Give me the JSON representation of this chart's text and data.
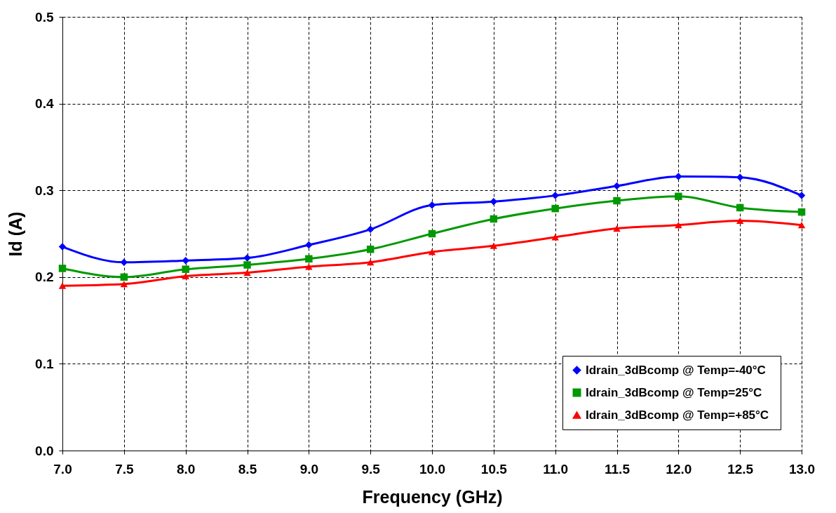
{
  "chart_data": {
    "type": "line",
    "xlabel": "Frequency (GHz)",
    "ylabel": "Id (A)",
    "x": [
      7.0,
      7.5,
      8.0,
      8.5,
      9.0,
      9.5,
      10.0,
      10.5,
      11.0,
      11.5,
      12.0,
      12.5,
      13.0
    ],
    "series": [
      {
        "name": "Idrain_3dBcomp  @ Temp=-40°C",
        "color": "#0000ff",
        "marker": "diamond",
        "values": [
          0.235,
          0.217,
          0.219,
          0.222,
          0.237,
          0.255,
          0.283,
          0.287,
          0.294,
          0.305,
          0.316,
          0.315,
          0.294
        ]
      },
      {
        "name": "Idrain_3dBcomp  @ Temp=25°C",
        "color": "#009900",
        "marker": "square",
        "values": [
          0.21,
          0.2,
          0.209,
          0.214,
          0.221,
          0.232,
          0.25,
          0.267,
          0.279,
          0.288,
          0.293,
          0.28,
          0.275
        ]
      },
      {
        "name": "Idrain_3dBcomp  @ Temp=+85°C",
        "color": "#ff0000",
        "marker": "triangle",
        "values": [
          0.19,
          0.192,
          0.201,
          0.205,
          0.212,
          0.217,
          0.229,
          0.236,
          0.246,
          0.256,
          0.26,
          0.265,
          0.26
        ]
      }
    ],
    "xlim": [
      7.0,
      13.0
    ],
    "xticks": [
      {
        "value": 7,
        "label": "7.0"
      },
      {
        "value": 7.5,
        "label": "7.5"
      },
      {
        "value": 8,
        "label": "8.0"
      },
      {
        "value": 8.5,
        "label": "8.5"
      },
      {
        "value": 9,
        "label": "9.0"
      },
      {
        "value": 9.5,
        "label": "9.5"
      },
      {
        "value": 10,
        "label": "10.0"
      },
      {
        "value": 10.5,
        "label": "10.5"
      },
      {
        "value": 11,
        "label": "11.0"
      },
      {
        "value": 11.5,
        "label": "11.5"
      },
      {
        "value": 12,
        "label": "12.0"
      },
      {
        "value": 12.5,
        "label": "12.5"
      },
      {
        "value": 13,
        "label": "13.0"
      }
    ],
    "ylim": [
      0.0,
      0.5
    ],
    "yticks": [
      {
        "value": 0,
        "label": "0.0"
      },
      0.1,
      0.2,
      0.3,
      0.4,
      0.5
    ],
    "grid": true,
    "legend": "bottom right",
    "line_style": "solid"
  }
}
